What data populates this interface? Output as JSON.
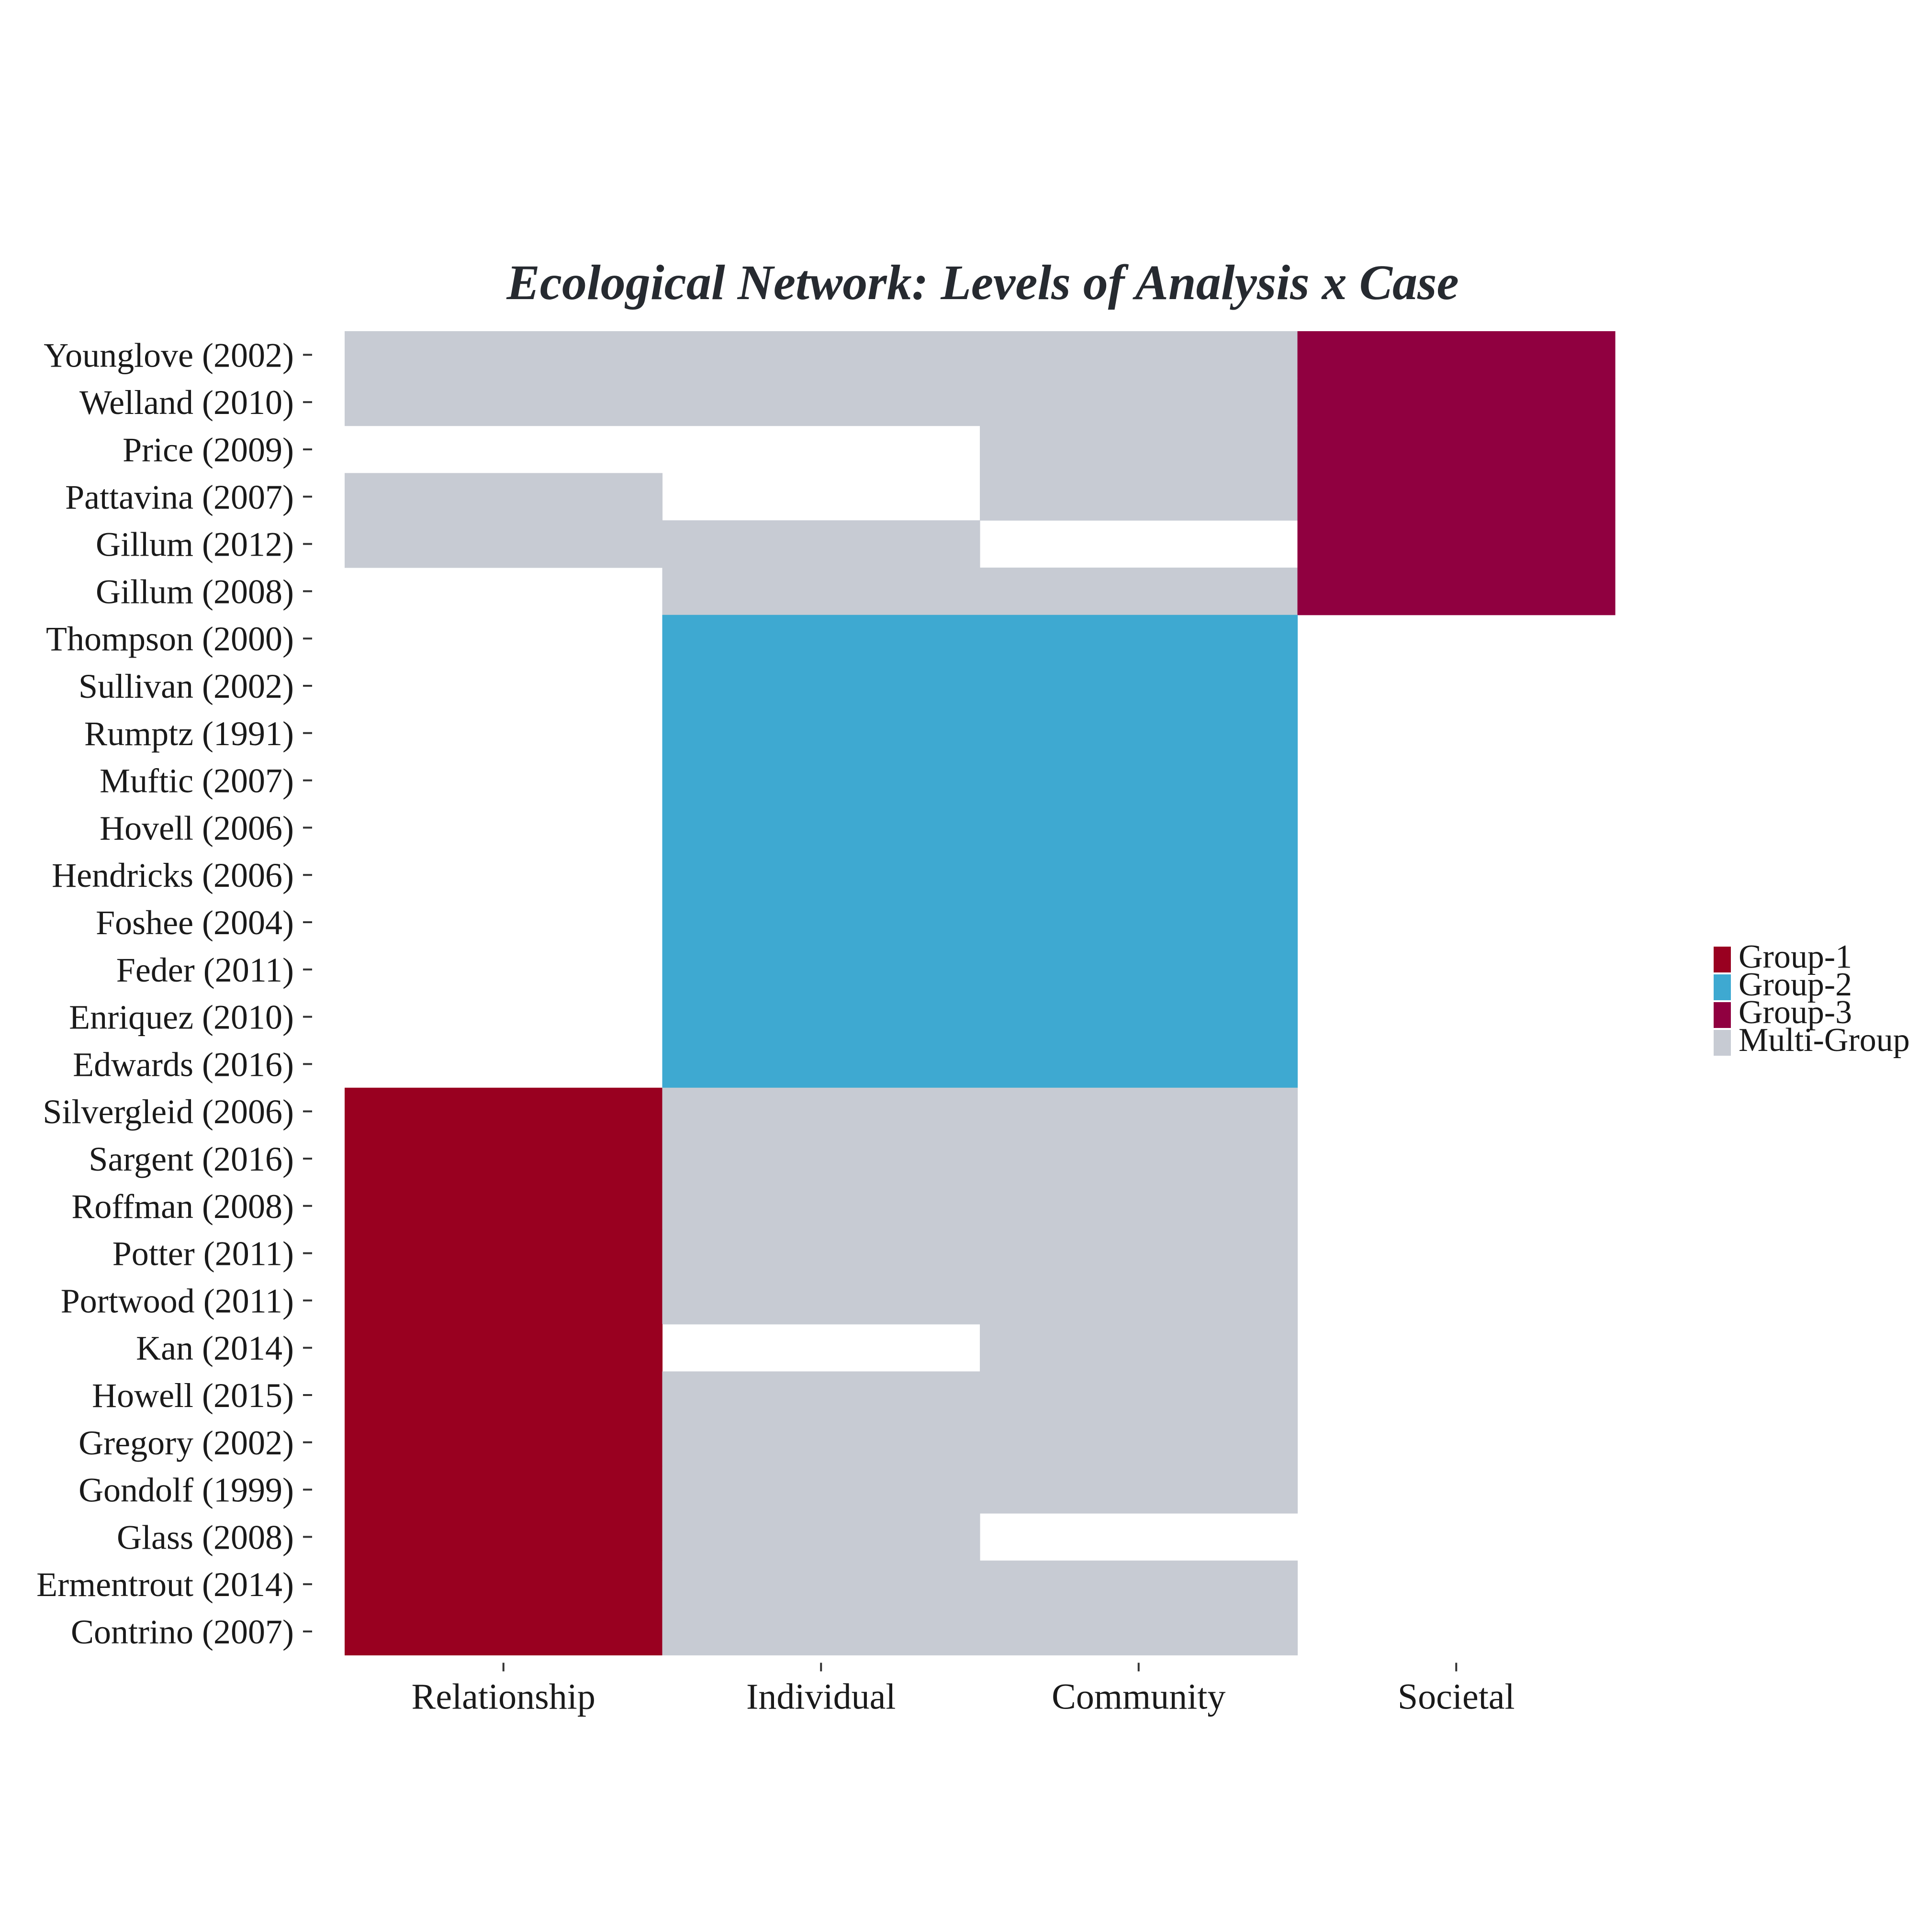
{
  "chart_data": {
    "type": "heatmap",
    "title": "Ecological Network: Levels of Analysis x Case",
    "xlabel": "",
    "ylabel": "",
    "x_categories": [
      "Relationship",
      "Individual",
      "Community",
      "Societal"
    ],
    "y_categories": [
      "Younglove (2002)",
      "Welland (2010)",
      "Price (2009)",
      "Pattavina (2007)",
      "Gillum (2012)",
      "Gillum (2008)",
      "Thompson (2000)",
      "Sullivan (2002)",
      "Rumptz (1991)",
      "Muftic (2007)",
      "Hovell (2006)",
      "Hendricks (2006)",
      "Foshee (2004)",
      "Feder (2011)",
      "Enriquez (2010)",
      "Edwards (2016)",
      "Silvergleid (2006)",
      "Sargent (2016)",
      "Roffman (2008)",
      "Potter (2011)",
      "Portwood (2011)",
      "Kan (2014)",
      "Howell (2015)",
      "Gregory (2002)",
      "Gondolf (1999)",
      "Glass (2008)",
      "Ermentrout (2014)",
      "Contrino (2007)"
    ],
    "cells": [
      [
        "Multi-Group",
        "Multi-Group",
        "Multi-Group",
        "Group-3"
      ],
      [
        "Multi-Group",
        "Multi-Group",
        "Multi-Group",
        "Group-3"
      ],
      [
        null,
        null,
        "Multi-Group",
        "Group-3"
      ],
      [
        "Multi-Group",
        null,
        "Multi-Group",
        "Group-3"
      ],
      [
        "Multi-Group",
        "Multi-Group",
        null,
        "Group-3"
      ],
      [
        null,
        "Multi-Group",
        "Multi-Group",
        "Group-3"
      ],
      [
        null,
        "Group-2",
        "Group-2",
        null
      ],
      [
        null,
        "Group-2",
        "Group-2",
        null
      ],
      [
        null,
        "Group-2",
        "Group-2",
        null
      ],
      [
        null,
        "Group-2",
        "Group-2",
        null
      ],
      [
        null,
        "Group-2",
        "Group-2",
        null
      ],
      [
        null,
        "Group-2",
        "Group-2",
        null
      ],
      [
        null,
        "Group-2",
        "Group-2",
        null
      ],
      [
        null,
        "Group-2",
        "Group-2",
        null
      ],
      [
        null,
        "Group-2",
        "Group-2",
        null
      ],
      [
        null,
        "Group-2",
        "Group-2",
        null
      ],
      [
        "Group-1",
        "Multi-Group",
        "Multi-Group",
        null
      ],
      [
        "Group-1",
        "Multi-Group",
        "Multi-Group",
        null
      ],
      [
        "Group-1",
        "Multi-Group",
        "Multi-Group",
        null
      ],
      [
        "Group-1",
        "Multi-Group",
        "Multi-Group",
        null
      ],
      [
        "Group-1",
        "Multi-Group",
        "Multi-Group",
        null
      ],
      [
        "Group-1",
        null,
        "Multi-Group",
        null
      ],
      [
        "Group-1",
        "Multi-Group",
        "Multi-Group",
        null
      ],
      [
        "Group-1",
        "Multi-Group",
        "Multi-Group",
        null
      ],
      [
        "Group-1",
        "Multi-Group",
        "Multi-Group",
        null
      ],
      [
        "Group-1",
        "Multi-Group",
        null,
        null
      ],
      [
        "Group-1",
        "Multi-Group",
        "Multi-Group",
        null
      ],
      [
        "Group-1",
        "Multi-Group",
        "Multi-Group",
        null
      ]
    ],
    "legend": {
      "placement": "right",
      "entries": [
        {
          "name": "Group-1",
          "color": "#990020"
        },
        {
          "name": "Group-2",
          "color": "#3ea9d1"
        },
        {
          "name": "Group-3",
          "color": "#900040"
        },
        {
          "name": "Multi-Group",
          "color": "#c7cbd3"
        }
      ]
    },
    "grid": false
  }
}
